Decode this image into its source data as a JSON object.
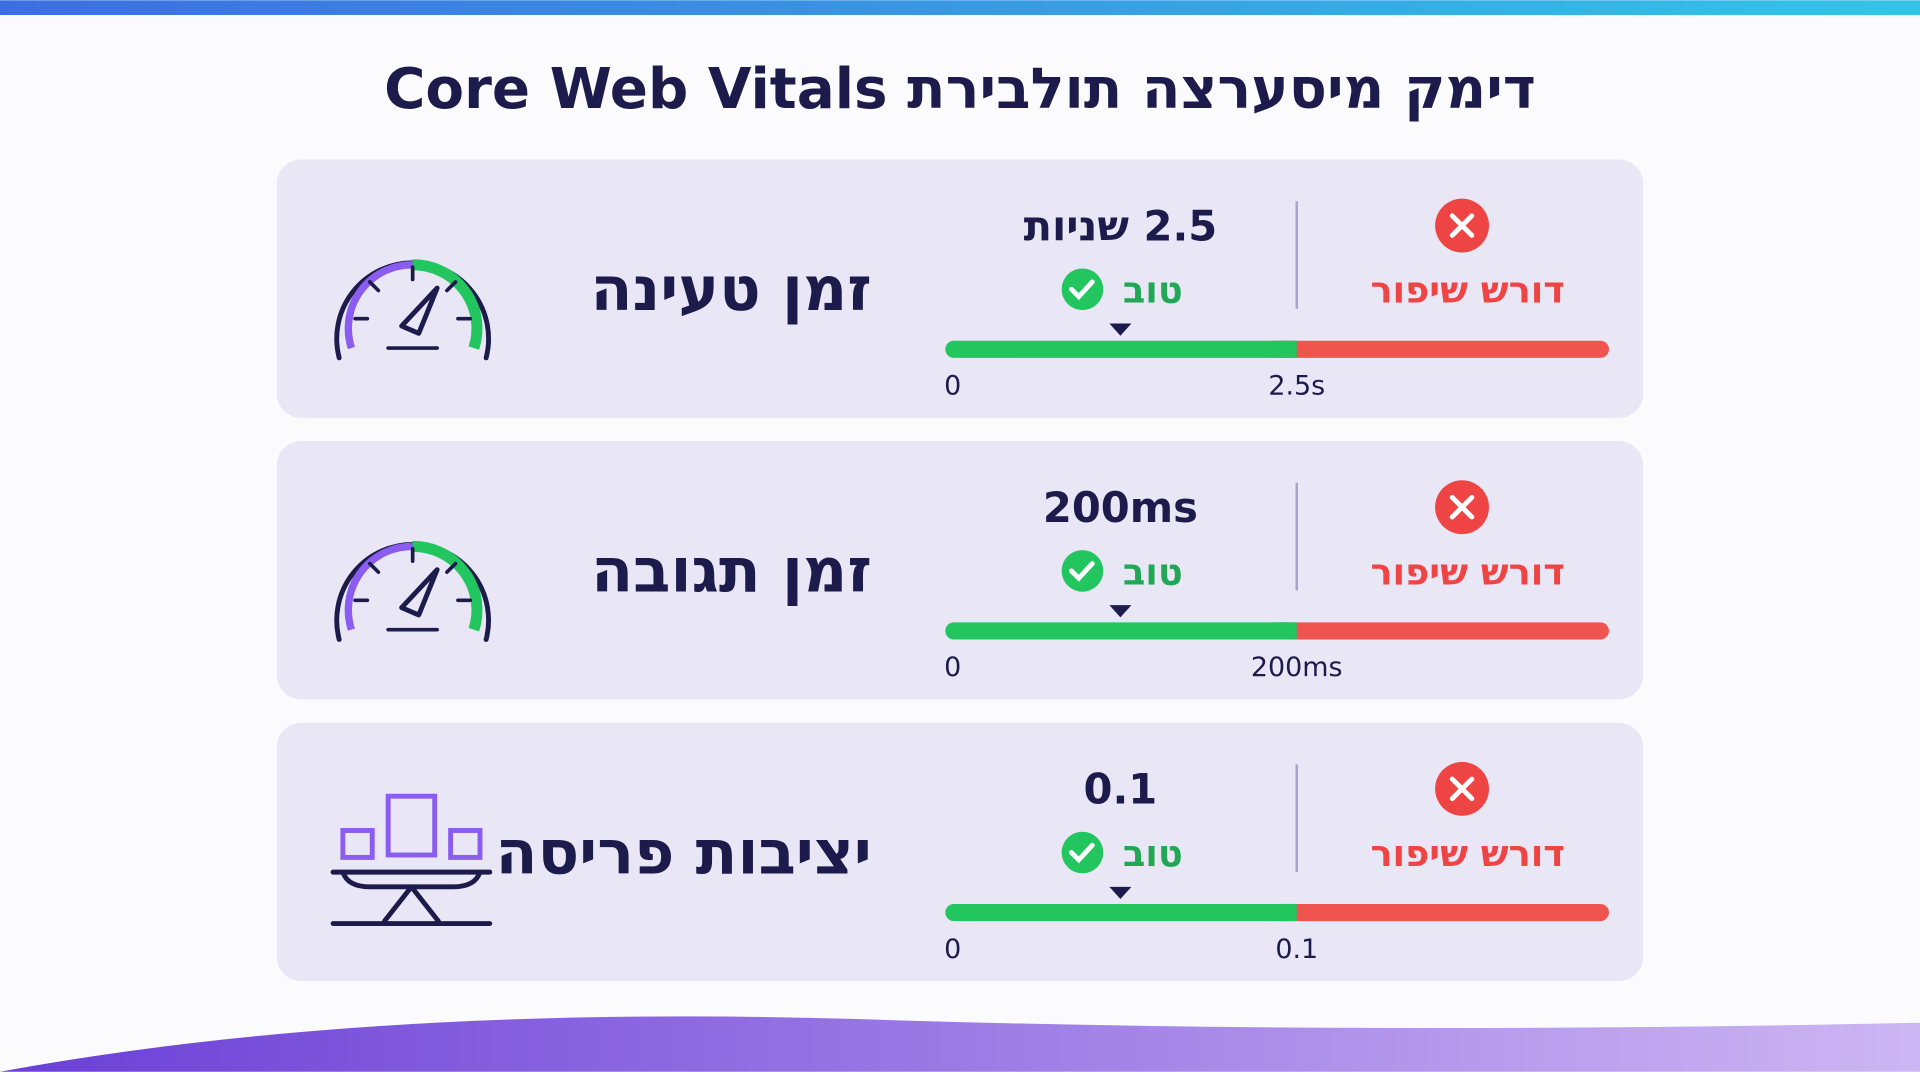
{
  "header": {
    "title": "דימק מיסערצה תולבירת Core Web Vitals"
  },
  "metrics": [
    {
      "label": "זמן טעינה",
      "value": "2.5 שניות",
      "good": "טוב",
      "bad": "דורש שיפור",
      "scale_start": "0",
      "threshold": "2.5s"
    },
    {
      "label": "זמן תגובה",
      "value": "200ms",
      "good": "טוב",
      "bad": "דורש שיפור",
      "scale_start": "0",
      "threshold": "200ms"
    },
    {
      "label": "יציבות פריסה",
      "value": "0.1",
      "good": "טוב",
      "bad": "דורש שיפור",
      "scale_start": "0",
      "threshold": "0.1"
    }
  ]
}
